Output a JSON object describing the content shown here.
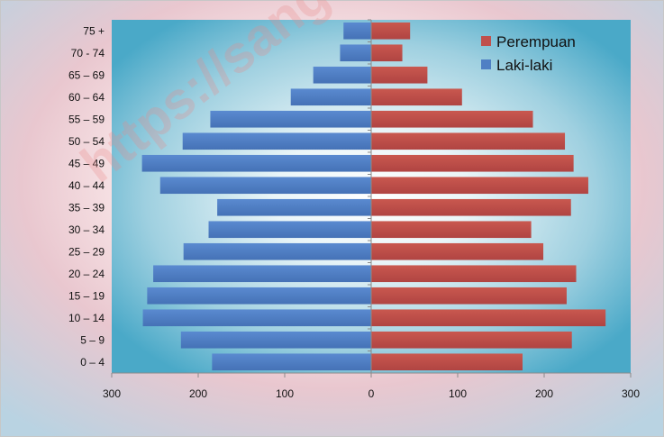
{
  "watermark": "https://sang",
  "chart_data": {
    "type": "bar",
    "orientation": "horizontal",
    "layout": "population-pyramid",
    "categories": [
      "0 – 4",
      "5 – 9",
      "10 – 14",
      "15 – 19",
      "20 – 24",
      "25 – 29",
      "30 – 34",
      "35 – 39",
      "40 – 44",
      "45 – 49",
      "50 – 54",
      "55 – 59",
      "60 – 64",
      "65 – 69",
      "70 - 74",
      "75  +"
    ],
    "series": [
      {
        "name": "Laki-laki",
        "side": "left",
        "color": "#4f7fc4",
        "values": [
          184,
          220,
          264,
          259,
          252,
          217,
          188,
          178,
          244,
          265,
          218,
          186,
          93,
          67,
          36,
          32
        ]
      },
      {
        "name": "Perempuan",
        "side": "right",
        "color": "#c0504d",
        "values": [
          175,
          232,
          271,
          226,
          237,
          199,
          185,
          231,
          251,
          234,
          224,
          187,
          105,
          65,
          36,
          45
        ]
      }
    ],
    "x_ticks": [
      "300",
      "200",
      "100",
      "0",
      "100",
      "200",
      "300"
    ],
    "xlim": [
      -300,
      300
    ],
    "title": "",
    "xlabel": "",
    "ylabel": "",
    "grid": false,
    "legend_position": "top-right"
  }
}
